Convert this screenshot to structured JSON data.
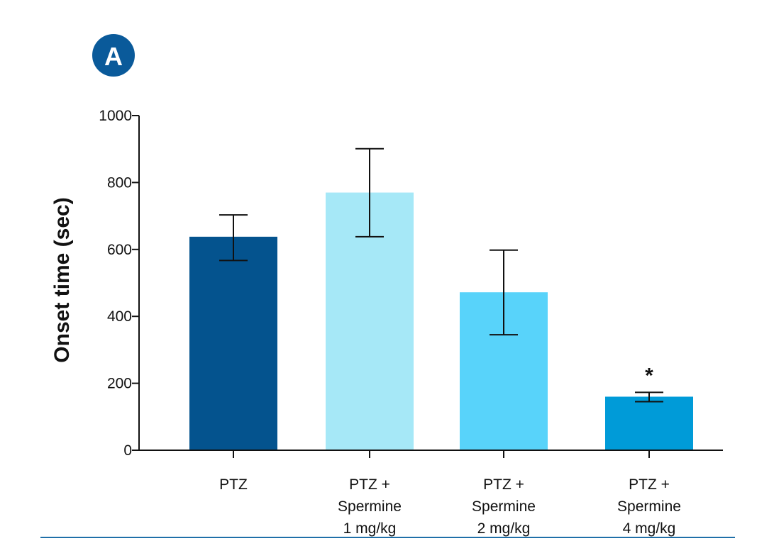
{
  "panel_label": "A",
  "colors": {
    "panel_badge": "#0a5a9a",
    "axis": "#111111",
    "divider": "#1f6fa8",
    "bars": [
      "#04538e",
      "#a6e8f7",
      "#58d3fa",
      "#009bd8"
    ]
  },
  "chart_data": {
    "type": "bar",
    "title": "",
    "xlabel": "",
    "ylabel": "Onset time (sec)",
    "ylim": [
      0,
      1000
    ],
    "yticks": [
      0,
      200,
      400,
      600,
      800,
      1000
    ],
    "categories": [
      [
        "PTZ"
      ],
      [
        "PTZ +",
        "Spermine",
        "1 mg/kg"
      ],
      [
        "PTZ +",
        "Spermine",
        "2 mg/kg"
      ],
      [
        "PTZ +",
        "Spermine",
        "4 mg/kg"
      ]
    ],
    "values": [
      638,
      770,
      472,
      160
    ],
    "error_low": [
      567,
      638,
      345,
      145
    ],
    "error_high": [
      703,
      901,
      598,
      173
    ],
    "annotations": [
      "",
      "",
      "",
      "*"
    ]
  }
}
